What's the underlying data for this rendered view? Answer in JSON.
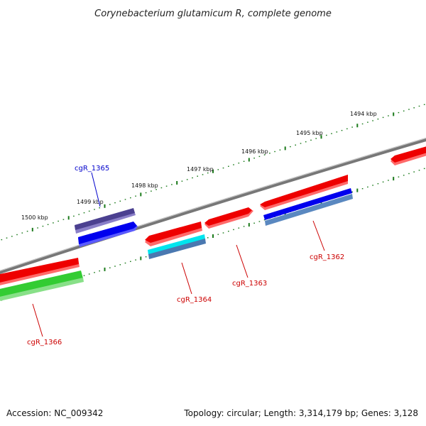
{
  "title": "Corynebacterium glutamicum R, complete genome",
  "footer": {
    "accession": "Accession: NC_009342",
    "topology": "Topology: circular; Length: 3,314,179 bp; Genes: 3,128"
  },
  "scale_ticks": [
    "1494 kbp",
    "1495 kbp",
    "1496 kbp",
    "1497 kbp",
    "1498 kbp",
    "1499 kbp",
    "1500 kbp"
  ],
  "genes": [
    {
      "label": "cgR_1362",
      "color": "#cc0000"
    },
    {
      "label": "cgR_1363",
      "color": "#cc0000"
    },
    {
      "label": "cgR_1364",
      "color": "#cc0000"
    },
    {
      "label": "cgR_1365",
      "color": "#0000cc"
    },
    {
      "label": "cgR_1366",
      "color": "#cc0000"
    }
  ],
  "colors": {
    "backbone": "#7a7a7a",
    "tick": "#1a7a1a",
    "red_feature": "#ee0000",
    "blue_feature": "#0000ee",
    "purple_feature": "#4b4090",
    "cyan_feature": "#00e5ee",
    "steel_feature": "#4a78b0",
    "green_feature": "#33cc33"
  }
}
